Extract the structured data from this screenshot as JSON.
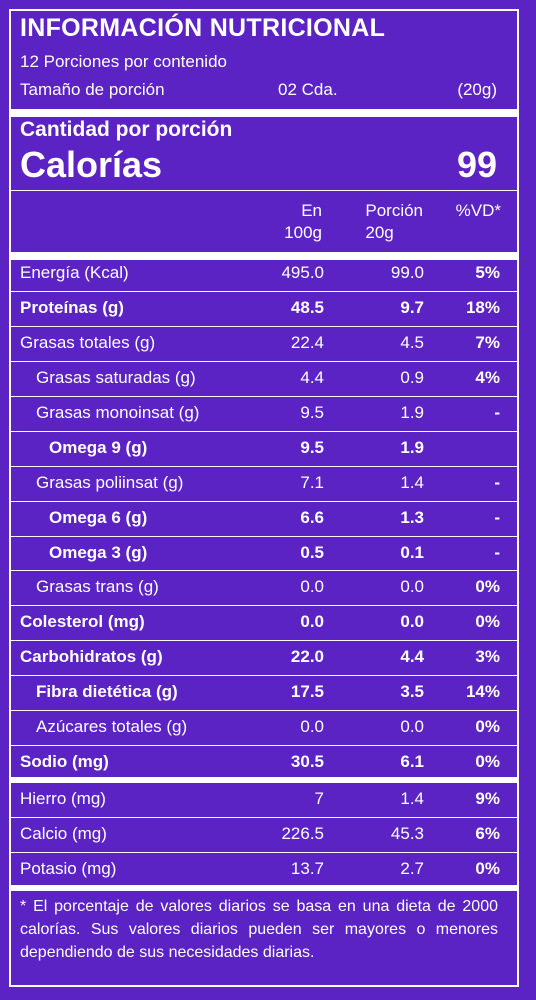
{
  "header": {
    "title": "INFORMACIÓN NUTRICIONAL",
    "servings": "12 Porciones por contenido",
    "serving_size_label": "Tamaño de porción",
    "serving_size_amount": "02 Cda.",
    "serving_size_grams": "(20g)"
  },
  "calories": {
    "amount_label": "Cantidad por porción",
    "label": "Calorías",
    "value": "99"
  },
  "columns": {
    "per100_line1": "En",
    "per100_line2": "100g",
    "portion_line1": "Porción",
    "portion_line2": "20g",
    "dv": "%VD*"
  },
  "rows": [
    {
      "name": "Energía (Kcal)",
      "per100": "495.0",
      "portion": "99.0",
      "dv": "5%"
    },
    {
      "name": "Proteínas (g)",
      "per100": "48.5",
      "portion": "9.7",
      "dv": "18%"
    },
    {
      "name": "Grasas totales (g)",
      "per100": "22.4",
      "portion": "4.5",
      "dv": "7%"
    },
    {
      "name": "Grasas saturadas (g)",
      "per100": "4.4",
      "portion": "0.9",
      "dv": "4%"
    },
    {
      "name": "Grasas monoinsat (g)",
      "per100": "9.5",
      "portion": "1.9",
      "dv": "-"
    },
    {
      "name": "Omega 9 (g)",
      "per100": "9.5",
      "portion": "1.9",
      "dv": ""
    },
    {
      "name": "Grasas poliinsat (g)",
      "per100": "7.1",
      "portion": "1.4",
      "dv": "-"
    },
    {
      "name": "Omega 6 (g)",
      "per100": "6.6",
      "portion": "1.3",
      "dv": "-"
    },
    {
      "name": "Omega 3 (g)",
      "per100": "0.5",
      "portion": "0.1",
      "dv": "-"
    },
    {
      "name": "Grasas trans (g)",
      "per100": "0.0",
      "portion": "0.0",
      "dv": "0%"
    },
    {
      "name": "Colesterol (mg)",
      "per100": "0.0",
      "portion": "0.0",
      "dv": "0%"
    },
    {
      "name": "Carbohidratos (g)",
      "per100": "22.0",
      "portion": "4.4",
      "dv": "3%"
    },
    {
      "name": "Fibra dietética (g)",
      "per100": "17.5",
      "portion": "3.5",
      "dv": "14%"
    },
    {
      "name": "Azúcares totales (g)",
      "per100": "0.0",
      "portion": "0.0",
      "dv": "0%"
    },
    {
      "name": "Sodio (mg)",
      "per100": "30.5",
      "portion": "6.1",
      "dv": "0%"
    },
    {
      "name": "Hierro (mg)",
      "per100": "7",
      "portion": "1.4",
      "dv": "9%"
    },
    {
      "name": "Calcio (mg)",
      "per100": "226.5",
      "portion": "45.3",
      "dv": "6%"
    },
    {
      "name": "Potasio (mg)",
      "per100": "13.7",
      "portion": "2.7",
      "dv": "0%"
    }
  ],
  "footnote": "* El porcentaje de valores diarios se basa en una dieta de 2000 calorías. Sus valores diarios pueden ser mayores o menores dependiendo de sus necesidades diarias."
}
